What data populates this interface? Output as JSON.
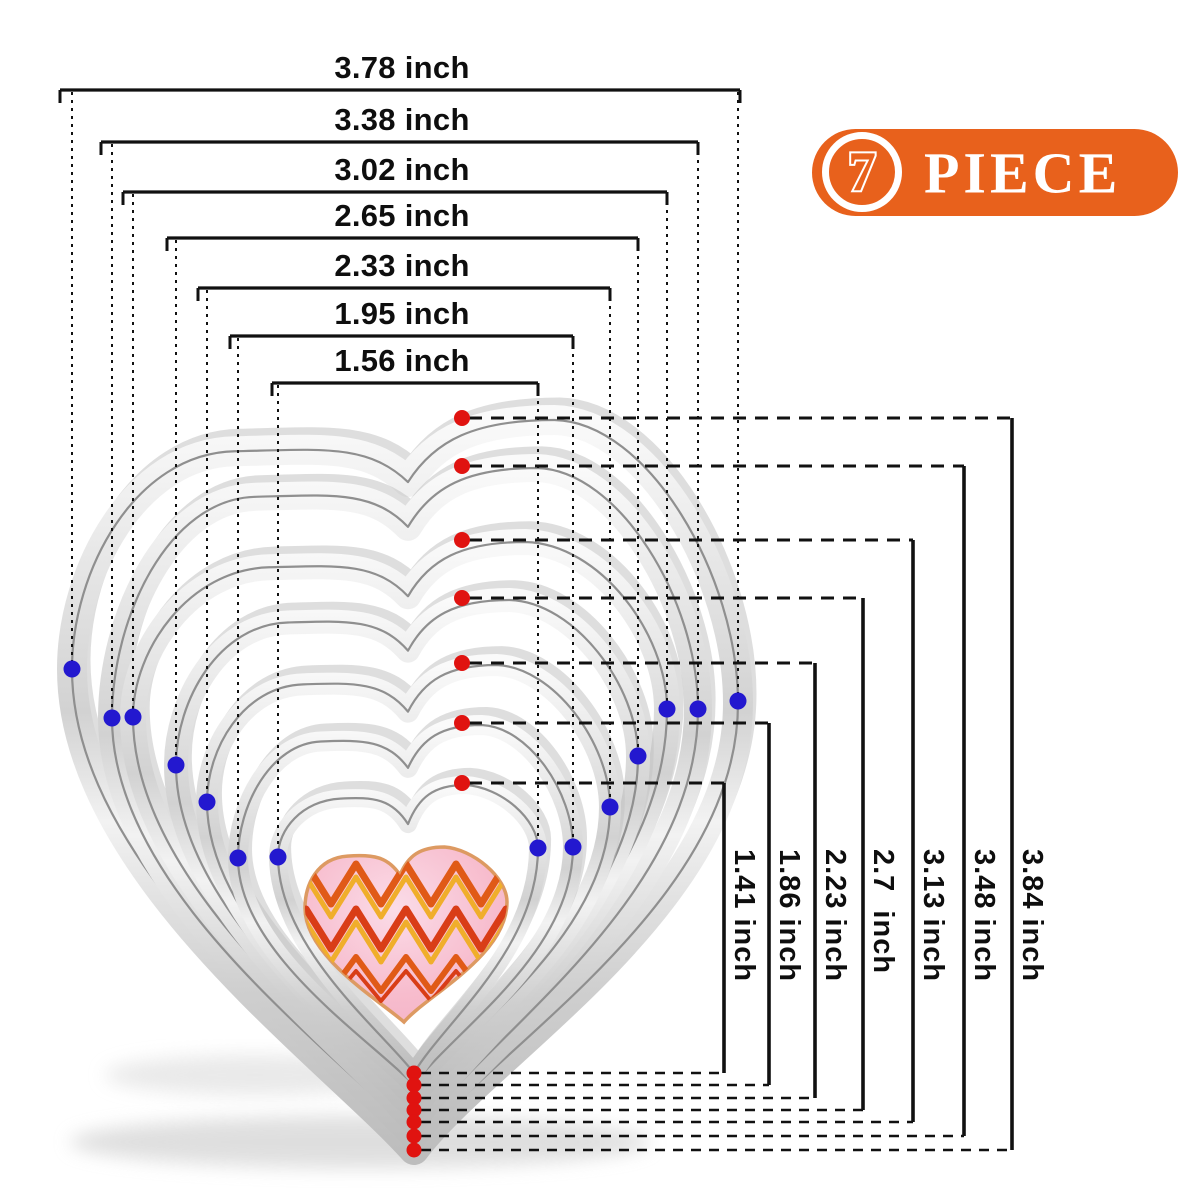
{
  "badge": {
    "count": "7",
    "label": "PIECE",
    "background_color": "#e8611c",
    "text_color": "#ffffff"
  },
  "dimensions": {
    "widths": [
      "3.78 inch",
      "3.38 inch",
      "3.02 inch",
      "2.65 inch",
      "2.33 inch",
      "1.95 inch",
      "1.56 inch"
    ],
    "heights": [
      "1.41 inch",
      "1.86 inch",
      "2.23 inch",
      "2.7  inch",
      "3.13 inch",
      "3.48 inch",
      "3.84 inch"
    ]
  },
  "markers": {
    "top_and_tip_dot_color": "#e01310",
    "side_dot_color": "#2318cf",
    "line_color": "#111111"
  }
}
